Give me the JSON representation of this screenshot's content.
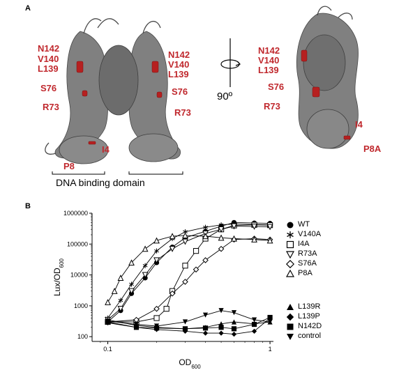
{
  "panel_a": {
    "letter": "A",
    "left_labels": [
      "N142",
      "V140",
      "L139",
      "S76",
      "R73",
      "P8"
    ],
    "left_inner_labels": [
      "I4"
    ],
    "middle_labels": [
      "N142",
      "V140",
      "L139",
      "S76",
      "R73"
    ],
    "rotation_label": "90º",
    "right_labels": [
      "N142",
      "V140",
      "L139",
      "S76",
      "R73"
    ],
    "right_small_labels": [
      "I4",
      "P8A"
    ],
    "dna_label": "DNA binding domain"
  },
  "panel_b": {
    "letter": "B",
    "legend": [
      "WT",
      "V140A",
      "I4A",
      "R73A",
      "S76A",
      "P8A",
      "L139R",
      "L139P",
      "N142D",
      "control"
    ]
  },
  "chart_data": {
    "type": "scatter",
    "title": "",
    "xlabel": "OD600",
    "ylabel": "Lux/OD600",
    "xscale": "log",
    "yscale": "log",
    "xlim": [
      0.08,
      1.05
    ],
    "ylim": [
      70,
      1000000
    ],
    "xticks": [
      "0.1",
      "1"
    ],
    "yticks": [
      "100",
      "1000",
      "10000",
      "100000",
      "1000000"
    ],
    "series": [
      {
        "name": "WT",
        "marker": "filled-circle",
        "x": [
          0.1,
          0.12,
          0.14,
          0.17,
          0.2,
          0.25,
          0.3,
          0.4,
          0.5,
          0.6,
          0.8,
          1.0
        ],
        "y": [
          300,
          700,
          2500,
          8000,
          25000,
          80000,
          160000,
          260000,
          380000,
          500000,
          480000,
          470000
        ]
      },
      {
        "name": "V140A",
        "marker": "asterisk",
        "x": [
          0.1,
          0.12,
          0.14,
          0.17,
          0.2,
          0.25,
          0.3,
          0.4,
          0.5,
          0.6,
          0.8,
          1.0
        ],
        "y": [
          400,
          1500,
          5000,
          20000,
          60000,
          150000,
          250000,
          350000,
          420000,
          450000,
          430000,
          420000
        ]
      },
      {
        "name": "I4A",
        "marker": "open-square",
        "x": [
          0.1,
          0.15,
          0.2,
          0.23,
          0.25,
          0.3,
          0.35,
          0.4,
          0.5,
          0.6,
          0.8,
          1.0
        ],
        "y": [
          300,
          300,
          400,
          800,
          3000,
          20000,
          60000,
          150000,
          300000,
          400000,
          420000,
          410000
        ]
      },
      {
        "name": "R73A",
        "marker": "open-triangle-down",
        "x": [
          0.1,
          0.12,
          0.14,
          0.17,
          0.2,
          0.25,
          0.3,
          0.4,
          0.5,
          0.6,
          0.8,
          1.0
        ],
        "y": [
          350,
          800,
          3000,
          10000,
          30000,
          70000,
          120000,
          220000,
          300000,
          380000,
          370000,
          360000
        ]
      },
      {
        "name": "S76A",
        "marker": "open-diamond",
        "x": [
          0.1,
          0.15,
          0.2,
          0.25,
          0.3,
          0.35,
          0.4,
          0.5,
          0.6,
          0.8,
          1.0
        ],
        "y": [
          300,
          350,
          800,
          2500,
          6000,
          15000,
          30000,
          70000,
          140000,
          150000,
          140000
        ]
      },
      {
        "name": "P8A",
        "marker": "open-triangle-up",
        "x": [
          0.1,
          0.11,
          0.12,
          0.14,
          0.17,
          0.2,
          0.25,
          0.3,
          0.4,
          0.5,
          0.6,
          0.8,
          1.0
        ],
        "y": [
          1300,
          3000,
          8000,
          25000,
          70000,
          130000,
          180000,
          190000,
          180000,
          160000,
          150000,
          140000,
          130000
        ]
      },
      {
        "name": "L139R",
        "marker": "filled-triangle-up",
        "x": [
          0.1,
          0.15,
          0.2,
          0.3,
          0.4,
          0.5,
          0.6,
          0.8,
          1.0
        ],
        "y": [
          350,
          230,
          200,
          180,
          200,
          260,
          300,
          260,
          300
        ]
      },
      {
        "name": "L139P",
        "marker": "filled-diamond",
        "x": [
          0.1,
          0.15,
          0.2,
          0.3,
          0.4,
          0.5,
          0.6,
          0.8,
          1.0
        ],
        "y": [
          280,
          200,
          170,
          150,
          130,
          130,
          120,
          150,
          400
        ]
      },
      {
        "name": "N142D",
        "marker": "filled-square",
        "x": [
          0.1,
          0.15,
          0.2,
          0.3,
          0.4,
          0.5,
          0.6,
          0.8,
          1.0
        ],
        "y": [
          300,
          200,
          190,
          180,
          190,
          200,
          180,
          250,
          420
        ]
      },
      {
        "name": "control",
        "marker": "filled-triangle-down",
        "x": [
          0.1,
          0.15,
          0.2,
          0.3,
          0.4,
          0.5,
          0.6,
          0.8,
          1.0
        ],
        "y": [
          320,
          250,
          220,
          300,
          500,
          700,
          600,
          350,
          300
        ]
      }
    ]
  }
}
